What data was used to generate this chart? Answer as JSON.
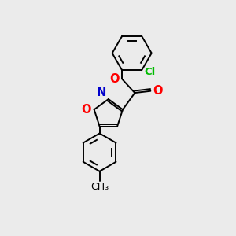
{
  "background_color": "#ebebeb",
  "bond_color": "#000000",
  "atom_colors": {
    "O": "#ff0000",
    "N": "#0000cc",
    "Cl": "#00bb00",
    "C": "#000000"
  },
  "bond_width": 1.4,
  "font_size": 9.5,
  "figsize": [
    3.0,
    3.0
  ],
  "dpi": 100
}
